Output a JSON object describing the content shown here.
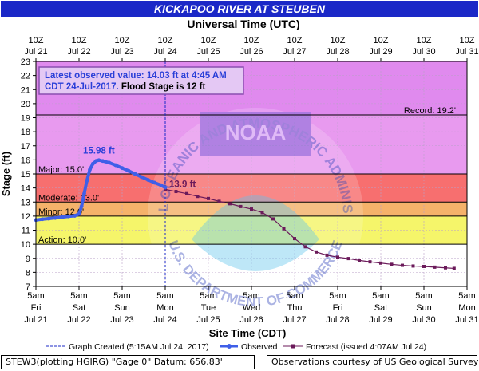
{
  "header": {
    "title": "KICKAPOO RIVER AT STEUBEN",
    "top_axis_title": "Universal Time (UTC)"
  },
  "chart_data": {
    "type": "line",
    "ylabel": "Stage (ft)",
    "xlabel": "Site Time (CDT)",
    "ylim": [
      7,
      23
    ],
    "yticks": [
      7,
      8,
      9,
      10,
      11,
      12,
      13,
      14,
      15,
      16,
      17,
      18,
      19,
      20,
      21,
      22,
      23
    ],
    "xlim_days": [
      0,
      10
    ],
    "top_ticks": [
      {
        "l1": "10Z",
        "l2": "Jul 21"
      },
      {
        "l1": "10Z",
        "l2": "Jul 22"
      },
      {
        "l1": "10Z",
        "l2": "Jul 23"
      },
      {
        "l1": "10Z",
        "l2": "Jul 24"
      },
      {
        "l1": "10Z",
        "l2": "Jul 25"
      },
      {
        "l1": "10Z",
        "l2": "Jul 26"
      },
      {
        "l1": "10Z",
        "l2": "Jul 27"
      },
      {
        "l1": "10Z",
        "l2": "Jul 28"
      },
      {
        "l1": "10Z",
        "l2": "Jul 29"
      },
      {
        "l1": "10Z",
        "l2": "Jul 30"
      },
      {
        "l1": "10Z",
        "l2": "Jul 31"
      }
    ],
    "bottom_ticks": [
      {
        "l1": "5am",
        "l2": "Fri",
        "l3": "Jul 21"
      },
      {
        "l1": "5am",
        "l2": "Sat",
        "l3": "Jul 22"
      },
      {
        "l1": "5am",
        "l2": "Sun",
        "l3": "Jul 23"
      },
      {
        "l1": "5am",
        "l2": "Mon",
        "l3": "Jul 24"
      },
      {
        "l1": "5am",
        "l2": "Tue",
        "l3": "Jul 25"
      },
      {
        "l1": "5am",
        "l2": "Wed",
        "l3": "Jul 26"
      },
      {
        "l1": "5am",
        "l2": "Thu",
        "l3": "Jul 27"
      },
      {
        "l1": "5am",
        "l2": "Fri",
        "l3": "Jul 28"
      },
      {
        "l1": "5am",
        "l2": "Sat",
        "l3": "Jul 29"
      },
      {
        "l1": "5am",
        "l2": "Sun",
        "l3": "Jul 30"
      },
      {
        "l1": "5am",
        "l2": "Mon",
        "l3": "Jul 31"
      }
    ],
    "bands": [
      {
        "from": 19.2,
        "to": 23,
        "color": "#e08aee"
      },
      {
        "from": 15,
        "to": 19.2,
        "color": "#e89aef"
      },
      {
        "from": 13,
        "to": 15,
        "color": "#f76f6f"
      },
      {
        "from": 12,
        "to": 13,
        "color": "#f5b26a"
      },
      {
        "from": 10,
        "to": 12,
        "color": "#f5f56a"
      },
      {
        "from": 7,
        "to": 10,
        "color": "#ffffff"
      }
    ],
    "thresholds": [
      {
        "label": "Record: 19.2'",
        "value": 19.2,
        "align": "right"
      },
      {
        "label": "Major: 15.0'",
        "value": 15.0,
        "align": "left"
      },
      {
        "label": "Moderate: 13.0'",
        "value": 13.0,
        "align": "left"
      },
      {
        "label": "Minor: 12.0'",
        "value": 12.0,
        "align": "left"
      },
      {
        "label": "Action: 10.0'",
        "value": 10.0,
        "align": "left"
      }
    ],
    "observed_color": "#3f5fe8",
    "forecast_color": "#6b1a5a",
    "observed": [
      [
        0.0,
        11.72
      ],
      [
        0.15,
        11.78
      ],
      [
        0.3,
        11.82
      ],
      [
        0.45,
        11.87
      ],
      [
        0.6,
        11.92
      ],
      [
        0.75,
        11.98
      ],
      [
        0.9,
        12.02
      ],
      [
        1.0,
        12.15
      ],
      [
        1.06,
        12.7
      ],
      [
        1.12,
        13.6
      ],
      [
        1.18,
        14.5
      ],
      [
        1.25,
        15.3
      ],
      [
        1.32,
        15.72
      ],
      [
        1.4,
        15.93
      ],
      [
        1.46,
        15.98
      ],
      [
        1.55,
        15.92
      ],
      [
        1.7,
        15.8
      ],
      [
        1.85,
        15.62
      ],
      [
        2.0,
        15.42
      ],
      [
        2.15,
        15.22
      ],
      [
        2.3,
        15.0
      ],
      [
        2.45,
        14.78
      ],
      [
        2.6,
        14.58
      ],
      [
        2.75,
        14.38
      ],
      [
        2.9,
        14.2
      ],
      [
        3.0,
        14.03
      ]
    ],
    "forecast": [
      [
        3.0,
        13.9
      ],
      [
        3.25,
        13.75
      ],
      [
        3.5,
        13.6
      ],
      [
        3.75,
        13.4
      ],
      [
        4.0,
        13.25
      ],
      [
        4.25,
        13.05
      ],
      [
        4.5,
        12.88
      ],
      [
        4.75,
        12.68
      ],
      [
        5.0,
        12.5
      ],
      [
        5.25,
        12.25
      ],
      [
        5.5,
        11.8
      ],
      [
        5.75,
        11.1
      ],
      [
        6.0,
        10.4
      ],
      [
        6.25,
        9.82
      ],
      [
        6.5,
        9.45
      ],
      [
        6.75,
        9.22
      ],
      [
        7.0,
        9.08
      ],
      [
        7.25,
        8.98
      ],
      [
        7.5,
        8.85
      ],
      [
        7.75,
        8.75
      ],
      [
        8.0,
        8.66
      ],
      [
        8.25,
        8.57
      ],
      [
        8.5,
        8.5
      ],
      [
        8.75,
        8.45
      ],
      [
        9.0,
        8.42
      ],
      [
        9.25,
        8.37
      ],
      [
        9.5,
        8.32
      ],
      [
        9.7,
        8.28
      ]
    ],
    "graph_created_day": 3.0,
    "peak_label": "15.98 ft",
    "peak": [
      1.46,
      15.98
    ],
    "forecast_label": "13.9 ft",
    "forecast_point": [
      3.0,
      13.9
    ],
    "info_box": {
      "line1": "Latest observed value: 14.03 ft at 4:45 AM",
      "line2_blue": "CDT 24-Jul-2017.",
      "line2_black": " Flood Stage is 12 ft"
    },
    "watermark_lines": [
      "NATIONAL OCEANIC AND ATMOSPHERIC ADMINISTRATION",
      "NOAA",
      "U.S. DEPARTMENT OF COMMERCE"
    ],
    "legend": {
      "graph_created": "Graph Created (5:15AM Jul 24, 2017)",
      "observed": "Observed",
      "forecast": "Forecast (issued 4:07AM Jul 24)"
    }
  },
  "footer": {
    "left": "STEW3(plotting HGIRG) \"Gage 0\" Datum: 656.83'",
    "right": "Observations courtesy of US Geological Survey"
  }
}
